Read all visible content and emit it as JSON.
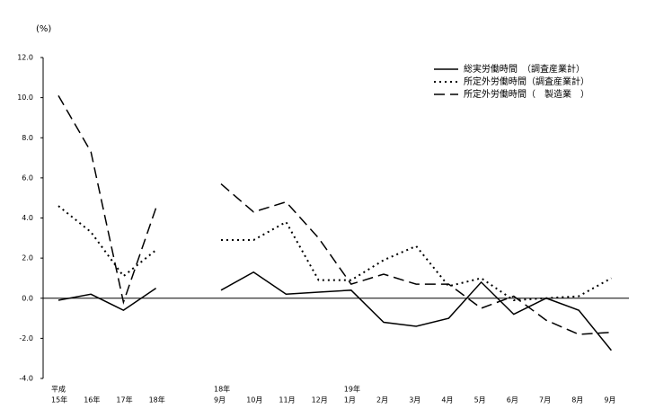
{
  "chart_data": {
    "type": "line",
    "unit_label": "(%)",
    "category_prefixes": [
      "平成",
      null,
      null,
      null,
      null,
      "18年",
      null,
      null,
      null,
      "19年",
      null,
      null,
      null,
      null,
      null,
      null,
      null,
      null
    ],
    "categories": [
      "15年",
      "16年",
      "17年",
      "18年",
      null,
      "9月",
      "10月",
      "11月",
      "12月",
      "1月",
      "2月",
      "3月",
      "4月",
      "5月",
      "6月",
      "7月",
      "8月",
      "9月"
    ],
    "series": [
      {
        "name": "総実労働時間　（調査産業計）",
        "color": "#000000",
        "dash": "solid",
        "values": [
          -0.1,
          0.2,
          -0.6,
          0.5,
          null,
          0.4,
          1.3,
          0.2,
          0.3,
          0.4,
          -1.2,
          -1.4,
          -1.0,
          0.8,
          -0.8,
          0.0,
          -0.6,
          -2.6
        ]
      },
      {
        "name": "所定外労働時間（調査産業計）",
        "color": "#000000",
        "dash": "dotted",
        "values": [
          4.6,
          3.3,
          1.1,
          2.4,
          null,
          2.9,
          2.9,
          3.8,
          0.9,
          0.9,
          1.9,
          2.6,
          0.6,
          1.0,
          -0.1,
          0.0,
          0.1,
          1.0
        ]
      },
      {
        "name": "所定外労働時間（　製造業　）",
        "color": "#000000",
        "dash": "dashed",
        "values": [
          10.1,
          7.3,
          -0.2,
          4.5,
          null,
          5.7,
          4.3,
          4.8,
          3.0,
          0.7,
          1.2,
          0.7,
          0.7,
          -0.5,
          0.1,
          -1.1,
          -1.8,
          -1.7
        ]
      }
    ],
    "ylim": [
      -4,
      12
    ],
    "yticks": [
      {
        "value": 12,
        "label": "12.0"
      },
      {
        "value": 10,
        "label": "10.0"
      },
      {
        "value": 8,
        "label": "8.0"
      },
      {
        "value": 6,
        "label": "6.0"
      },
      {
        "value": 4,
        "label": "4.0"
      },
      {
        "value": 2,
        "label": "2.0"
      },
      {
        "value": 0,
        "label": "0.0"
      },
      {
        "value": -2,
        "label": "-2.0"
      },
      {
        "value": -4,
        "label": "-4.0"
      }
    ],
    "legend": "top-right",
    "grid": false
  }
}
